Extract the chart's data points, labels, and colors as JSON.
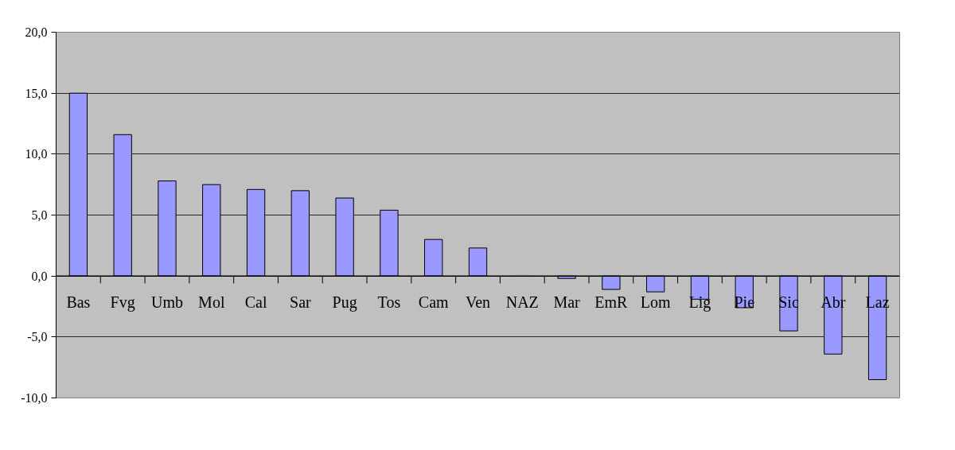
{
  "chart_data": {
    "type": "bar",
    "categories": [
      "Bas",
      "Fvg",
      "Umb",
      "Mol",
      "Cal",
      "Sar",
      "Pug",
      "Tos",
      "Cam",
      "Ven",
      "NAZ",
      "Mar",
      "EmR",
      "Lom",
      "Lig",
      "Pie",
      "Sic",
      "Abr",
      "Laz"
    ],
    "values": [
      15.0,
      11.6,
      7.8,
      7.5,
      7.1,
      7.0,
      6.4,
      5.4,
      3.0,
      2.3,
      0.0,
      -0.2,
      -1.1,
      -1.3,
      -1.9,
      -2.6,
      -4.5,
      -6.4,
      -8.5
    ],
    "color": "#9999ff",
    "ylim": [
      -10,
      20
    ],
    "yticks": [
      {
        "value": -10,
        "label": "-10,0"
      },
      {
        "value": -5,
        "label": "-5,0"
      },
      {
        "value": 0,
        "label": "0,0"
      },
      {
        "value": 5,
        "label": "5,0"
      },
      {
        "value": 10,
        "label": "10,0"
      },
      {
        "value": 15,
        "label": "15,0"
      },
      {
        "value": 20,
        "label": "20,0"
      }
    ],
    "grid": "y"
  }
}
